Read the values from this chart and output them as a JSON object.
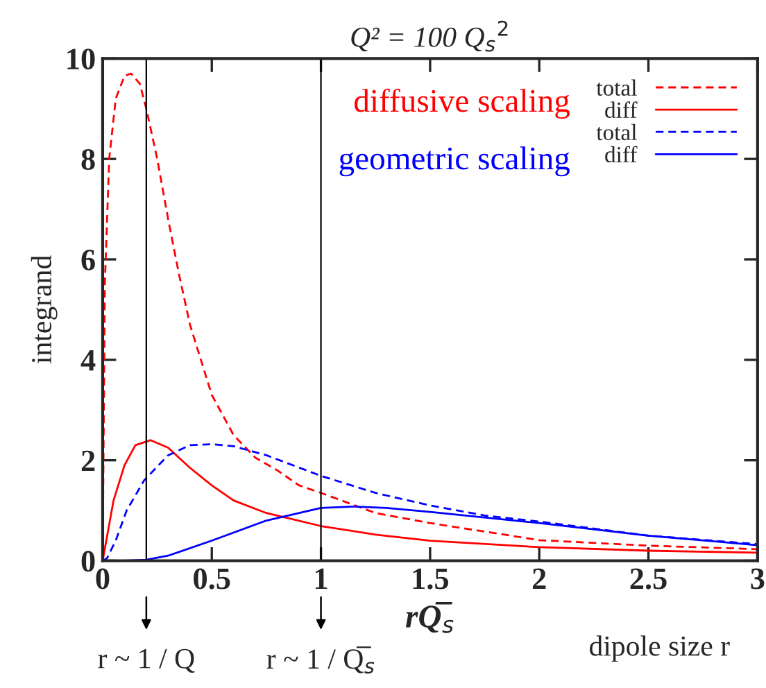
{
  "chart_data": {
    "type": "line",
    "title": "Q² = 100 Q$_{s}$$^{2}$",
    "xlabel": "rQ̅$_{s}$",
    "ylabel": "integrand",
    "xlim": [
      0,
      3
    ],
    "ylim": [
      0,
      10
    ],
    "xticks": [
      0,
      0.5,
      1,
      1.5,
      2,
      2.5,
      3
    ],
    "yticks": [
      0,
      2,
      4,
      6,
      8,
      10
    ],
    "grid": false,
    "legend": "top right",
    "annotations": [
      "diffusive scaling",
      "geometric scaling",
      "dipole size r",
      "r ~ 1 / Q",
      "r ~ 1 / Q̅$_{s}$"
    ],
    "ref_lines": [
      {
        "axis": "x",
        "value": 0.2
      },
      {
        "axis": "x",
        "value": 1
      }
    ],
    "series": [
      {
        "name": "total",
        "color": "#ff0000",
        "line_style": "dashed",
        "x": [
          0,
          0.01,
          0.03,
          0.06,
          0.1,
          0.13,
          0.17,
          0.2,
          0.25,
          0.3,
          0.35,
          0.4,
          0.5,
          0.6,
          0.7,
          0.8,
          0.9,
          1.0,
          1.25,
          1.5,
          2,
          2.5,
          3
        ],
        "values": [
          0,
          5.5,
          8.0,
          9.2,
          9.65,
          9.7,
          9.5,
          9.0,
          8.0,
          6.8,
          5.7,
          4.7,
          3.3,
          2.5,
          2.05,
          1.8,
          1.5,
          1.35,
          0.95,
          0.75,
          0.41,
          0.3,
          0.23
        ]
      },
      {
        "name": "diff",
        "color": "#ff0000",
        "line_style": "solid",
        "x": [
          0,
          0.05,
          0.1,
          0.15,
          0.22,
          0.3,
          0.4,
          0.5,
          0.6,
          0.75,
          1.0,
          1.25,
          1.5,
          2,
          2.5,
          3
        ],
        "values": [
          0,
          1.2,
          1.9,
          2.3,
          2.4,
          2.25,
          1.85,
          1.5,
          1.2,
          0.95,
          0.69,
          0.52,
          0.4,
          0.27,
          0.2,
          0.16
        ]
      },
      {
        "name": "total",
        "color": "#0000ff",
        "line_style": "dashed",
        "x": [
          0,
          0.02,
          0.06,
          0.11,
          0.19,
          0.3,
          0.4,
          0.5,
          0.6,
          0.75,
          1.0,
          1.25,
          1.5,
          1.75,
          2,
          2.5,
          3
        ],
        "values": [
          0,
          0.05,
          0.4,
          1.0,
          1.6,
          2.1,
          2.3,
          2.32,
          2.28,
          2.1,
          1.69,
          1.35,
          1.1,
          0.9,
          0.78,
          0.5,
          0.33
        ]
      },
      {
        "name": "diff",
        "color": "#0000ff",
        "line_style": "solid",
        "x": [
          0,
          0.1,
          0.2,
          0.3,
          0.5,
          0.75,
          1.0,
          1.15,
          1.3,
          1.5,
          2,
          2.5,
          3
        ],
        "values": [
          0,
          0.0,
          0.02,
          0.1,
          0.4,
          0.8,
          1.05,
          1.08,
          1.05,
          0.97,
          0.75,
          0.5,
          0.31
        ]
      }
    ]
  }
}
